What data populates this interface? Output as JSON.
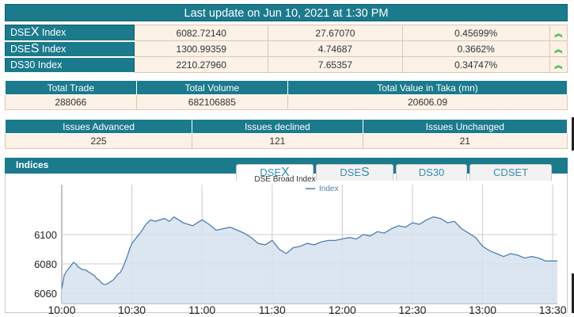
{
  "banner": {
    "title": "Last update on Jun 10, 2021 at 1:30 PM"
  },
  "indices": [
    {
      "name_prefix": "DSE",
      "name_big": "X",
      "name_suffix": " Index",
      "value": "6082.72140",
      "change": "27.67070",
      "pct": "0.45699%",
      "arrow_icon": "double-chevron-up-icon",
      "arrow_glyph": "︽"
    },
    {
      "name_prefix": "DSE",
      "name_big": "S",
      "name_suffix": " Index",
      "value": "1300.99359",
      "change": "4.74687",
      "pct": "0.3662%",
      "arrow_icon": "double-chevron-up-icon",
      "arrow_glyph": "︽"
    },
    {
      "name_prefix": "DS30 Index",
      "name_big": "",
      "name_suffix": "",
      "value": "2210.27960",
      "change": "7.65357",
      "pct": "0.34747%",
      "arrow_icon": "double-chevron-up-icon",
      "arrow_glyph": "︽"
    }
  ],
  "stats1": {
    "headers": [
      "Total Trade",
      "Total Volume",
      "Total Value in Taka (mn)"
    ],
    "values": [
      "288066",
      "682106885",
      "20606.09"
    ]
  },
  "stats2": {
    "headers": [
      "Issues Advanced",
      "Issues declined",
      "Issues Unchanged"
    ],
    "values": [
      "225",
      "121",
      "21"
    ]
  },
  "indices_panel": {
    "title": "Indices",
    "tabs": [
      {
        "prefix": "DSE",
        "big": "X",
        "active": true
      },
      {
        "prefix": "DSE",
        "big": "S",
        "active": false
      },
      {
        "prefix": "DS30",
        "big": "",
        "active": false
      },
      {
        "prefix": "CDSET",
        "big": "",
        "active": false
      }
    ]
  },
  "colors": {
    "teal": "#1b7a8c",
    "cell_bg": "#fbf1e6",
    "up_green": "#2aa330",
    "line": "#4f7fb0",
    "fill": "#d6e2ee"
  },
  "chart_data": {
    "type": "area",
    "title": "DSE Broad Index",
    "legend": "Index",
    "legend_position": "top",
    "grid": true,
    "ylim": [
      6053,
      6134
    ],
    "yticks": [
      6060,
      6080,
      6100
    ],
    "xticks": [
      "10:00",
      "10:30",
      "11:00",
      "11:30",
      "12:00",
      "12:30",
      "13:00",
      "13:30"
    ],
    "x_minutes": [
      0,
      1,
      2,
      3,
      4,
      5,
      6,
      7,
      8,
      9,
      10,
      11,
      12,
      13,
      14,
      15,
      16,
      17,
      18,
      19,
      20,
      21,
      22,
      23,
      24,
      25,
      26,
      27,
      28,
      29,
      30,
      32,
      34,
      36,
      38,
      40,
      42,
      44,
      46,
      48,
      50,
      52,
      54,
      56,
      58,
      60,
      63,
      66,
      69,
      72,
      75,
      78,
      81,
      84,
      87,
      90,
      93,
      96,
      99,
      102,
      105,
      108,
      111,
      114,
      117,
      120,
      123,
      126,
      129,
      132,
      135,
      138,
      141,
      144,
      147,
      150,
      153,
      156,
      159,
      162,
      165,
      168,
      171,
      174,
      177,
      180,
      183,
      186,
      189,
      192,
      195,
      198,
      201,
      204,
      207,
      210,
      212
    ],
    "values": [
      6063,
      6072,
      6075,
      6077,
      6079,
      6081,
      6080,
      6078,
      6077,
      6076,
      6076,
      6075,
      6074,
      6073,
      6072,
      6070,
      6069,
      6067,
      6066,
      6066,
      6067,
      6068,
      6069,
      6071,
      6073,
      6074,
      6077,
      6081,
      6085,
      6090,
      6094,
      6098,
      6102,
      6107,
      6110,
      6109,
      6110,
      6111,
      6109,
      6112,
      6110,
      6108,
      6107,
      6106,
      6108,
      6110,
      6107,
      6103,
      6104,
      6105,
      6103,
      6101,
      6098,
      6094,
      6093,
      6096,
      6090,
      6087,
      6091,
      6092,
      6094,
      6093,
      6095,
      6096,
      6096,
      6097,
      6098,
      6097,
      6100,
      6099,
      6102,
      6101,
      6104,
      6106,
      6105,
      6108,
      6107,
      6110,
      6112,
      6111,
      6108,
      6109,
      6104,
      6101,
      6098,
      6092,
      6089,
      6087,
      6085,
      6087,
      6086,
      6084,
      6085,
      6084,
      6082,
      6082,
      6082
    ]
  }
}
